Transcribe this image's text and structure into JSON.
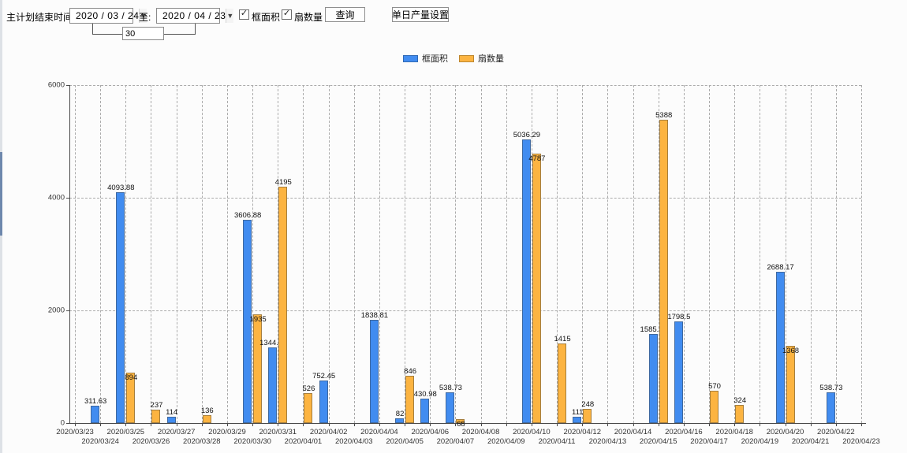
{
  "toolbar": {
    "label": "主计划结束时间:",
    "start_date": "2020 / 03 / 24",
    "to_label": "至:",
    "end_date": "2020 / 04 / 23",
    "days_value": "30",
    "checkbox_area": "框面积",
    "checkbox_fan": "扇数量",
    "query_button": "查询",
    "daily_settings_button": "单日产量设置"
  },
  "legend": {
    "items": [
      {
        "label": "框面积",
        "color": "#418CF0"
      },
      {
        "label": "扇数量",
        "color": "#FCB441"
      }
    ]
  },
  "chart_data": {
    "type": "bar",
    "title": "",
    "xlabel": "",
    "ylabel": "",
    "ylim": [
      0,
      6000
    ],
    "yticks": [
      0,
      2000,
      4000,
      6000
    ],
    "grid": true,
    "legend_position": "top-center",
    "categories": [
      "2020/03/23",
      "2020/03/24",
      "2020/03/25",
      "2020/03/26",
      "2020/03/27",
      "2020/03/28",
      "2020/03/29",
      "2020/03/30",
      "2020/03/31",
      "2020/04/01",
      "2020/04/02",
      "2020/04/03",
      "2020/04/04",
      "2020/04/05",
      "2020/04/06",
      "2020/04/07",
      "2020/04/08",
      "2020/04/09",
      "2020/04/10",
      "2020/04/11",
      "2020/04/12",
      "2020/04/13",
      "2020/04/14",
      "2020/04/15",
      "2020/04/16",
      "2020/04/17",
      "2020/04/18",
      "2020/04/19",
      "2020/04/20",
      "2020/04/21",
      "2020/04/22",
      "2020/04/23"
    ],
    "series": [
      {
        "name": "框面积",
        "color": "#418CF0",
        "values": [
          null,
          311.63,
          4093.88,
          null,
          114,
          null,
          null,
          3606.88,
          1344.95,
          null,
          752.45,
          null,
          1838.81,
          82,
          430.98,
          538.73,
          null,
          null,
          5036.29,
          null,
          111,
          null,
          null,
          1585.96,
          1798.5,
          null,
          null,
          null,
          2688.17,
          null,
          538.73,
          null
        ]
      },
      {
        "name": "扇数量",
        "color": "#FCB441",
        "values": [
          null,
          null,
          894,
          237,
          null,
          136,
          null,
          1935,
          4195,
          526,
          null,
          null,
          null,
          846,
          null,
          68,
          null,
          null,
          4787,
          1415,
          248,
          null,
          null,
          5388,
          null,
          570,
          324,
          null,
          1368,
          null,
          null,
          null
        ]
      }
    ]
  }
}
